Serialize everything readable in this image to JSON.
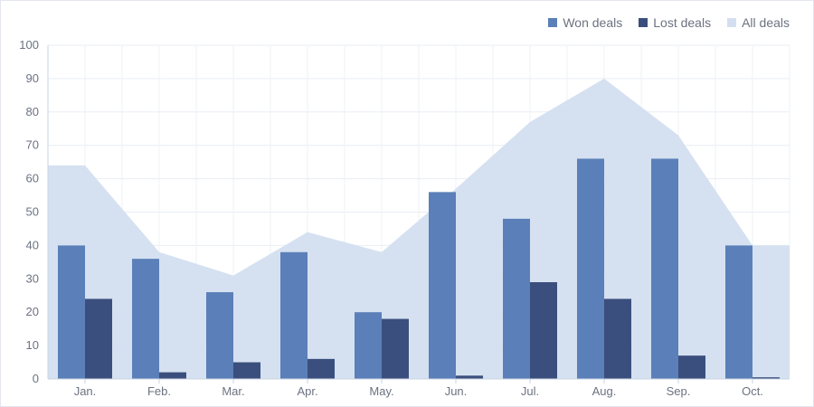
{
  "chart_data": {
    "type": "bar",
    "categories": [
      "Jan.",
      "Feb.",
      "Mar.",
      "Apr.",
      "May.",
      "Jun.",
      "Jul.",
      "Aug.",
      "Sep.",
      "Oct."
    ],
    "series": [
      {
        "name": "Won deals",
        "kind": "bar",
        "color": "#5b7fb8",
        "values": [
          40,
          36,
          26,
          38,
          20,
          56,
          48,
          66,
          66,
          40
        ]
      },
      {
        "name": "Lost deals",
        "kind": "bar",
        "color": "#3a4f7d",
        "values": [
          24,
          2,
          5,
          6,
          18,
          1,
          29,
          24,
          7,
          0.5
        ]
      },
      {
        "name": "All deals",
        "kind": "area",
        "color": "#d3dff0",
        "values": [
          64,
          38,
          31,
          44,
          38,
          57,
          77,
          90,
          73,
          40
        ]
      }
    ],
    "ylim": [
      0,
      100
    ],
    "yticks": [
      0,
      10,
      20,
      30,
      40,
      50,
      60,
      70,
      80,
      90,
      100
    ],
    "grid": true,
    "legend_position": "top-right"
  }
}
